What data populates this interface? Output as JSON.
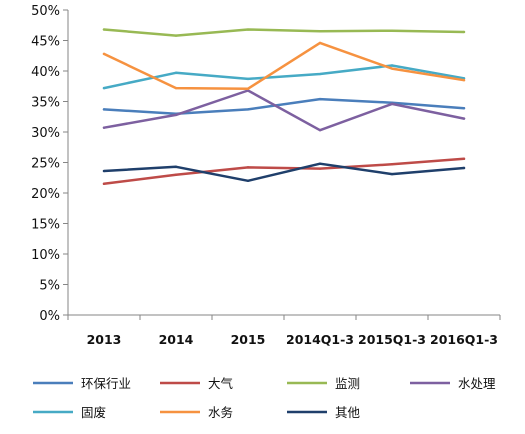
{
  "chart_data": {
    "type": "line",
    "categories": [
      "2013",
      "2014",
      "2015",
      "2014Q1-3",
      "2015Q1-3",
      "2016Q1-3"
    ],
    "ylim": [
      0,
      50
    ],
    "yticks": [
      "0%",
      "5%",
      "10%",
      "15%",
      "20%",
      "25%",
      "30%",
      "35%",
      "40%",
      "45%",
      "50%"
    ],
    "grid": false,
    "legend_position": "bottom",
    "series": [
      {
        "name": "环保行业",
        "color": "#4a7ebb",
        "values": [
          33.7,
          33.0,
          33.7,
          35.4,
          34.8,
          33.9
        ]
      },
      {
        "name": "大气",
        "color": "#be4b48",
        "values": [
          21.5,
          23.0,
          24.2,
          24.0,
          24.7,
          25.6
        ]
      },
      {
        "name": "监测",
        "color": "#98b954",
        "values": [
          46.8,
          45.8,
          46.8,
          46.5,
          46.6,
          46.4
        ]
      },
      {
        "name": "水处理",
        "color": "#7d60a0",
        "values": [
          30.7,
          32.8,
          36.8,
          30.3,
          34.6,
          32.2
        ]
      },
      {
        "name": "固废",
        "color": "#46aac5",
        "values": [
          37.2,
          39.7,
          38.7,
          39.5,
          40.9,
          38.8
        ]
      },
      {
        "name": "水务",
        "color": "#f69240",
        "values": [
          42.8,
          37.2,
          37.1,
          44.6,
          40.4,
          38.5
        ]
      },
      {
        "name": "其他",
        "color": "#1f3f6b",
        "values": [
          23.6,
          24.3,
          22.0,
          24.8,
          23.1,
          24.1
        ]
      }
    ]
  }
}
